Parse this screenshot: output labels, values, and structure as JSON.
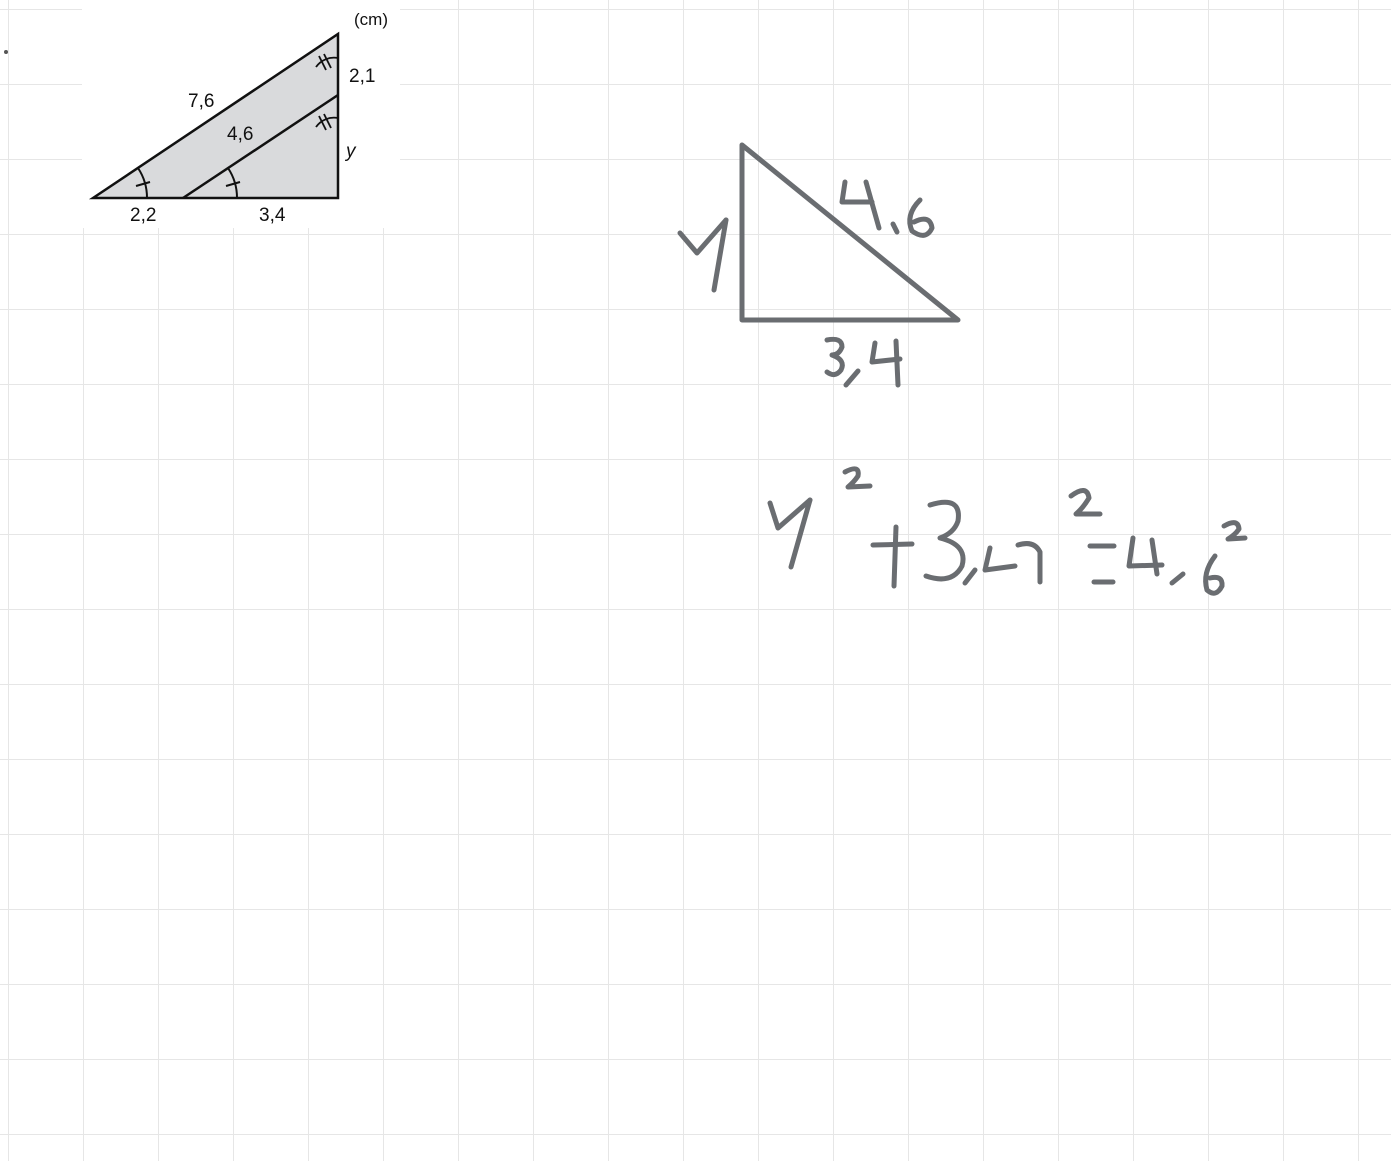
{
  "figure": {
    "unit": "(cm)",
    "labels": {
      "outer_hypotenuse": "7,6",
      "inner_hypotenuse": "4,6",
      "top_segment": "2,1",
      "unknown": "y",
      "base_left": "2,2",
      "base_right": "3,4"
    },
    "colors": {
      "fill": "#d9dadc",
      "stroke": "#111111"
    }
  },
  "handwriting": {
    "ink_color": "#6a6d71",
    "sketch_labels": [
      "y",
      "4,6",
      "3,4"
    ],
    "equation": "y² + 3,4² = 4,6²"
  }
}
